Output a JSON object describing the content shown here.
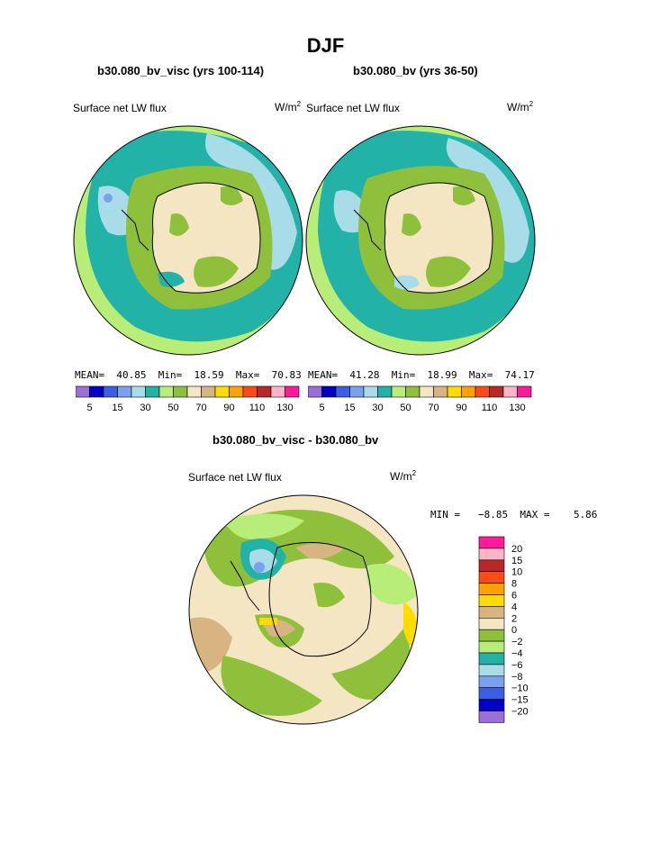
{
  "page": {
    "title": "DJF",
    "diff_title": "b30.080_bv_visc - b30.080_bv"
  },
  "panels": [
    {
      "case": "b30.080_bv_visc (yrs 100-114)",
      "field": "Surface net LW flux",
      "units_base": "W/m",
      "units_exp": "2",
      "stats": {
        "mean_label": "MEAN=",
        "mean": "40.85",
        "min_label": "Min=",
        "min": "18.59",
        "max_label": "Max=",
        "max": "70.83"
      }
    },
    {
      "case": "b30.080_bv (yrs 36-50)",
      "field": "Surface net LW flux",
      "units_base": "W/m",
      "units_exp": "2",
      "stats": {
        "mean_label": "MEAN=",
        "mean": "41.28",
        "min_label": "Min=",
        "min": "18.99",
        "max_label": "Max=",
        "max": "74.17"
      }
    }
  ],
  "colorbar_top": {
    "colors": [
      "#9a70d6",
      "#0000c8",
      "#3a5fe0",
      "#7aa0ee",
      "#a8dce8",
      "#22b2a8",
      "#b8ee78",
      "#8ec03c",
      "#f4e6c2",
      "#d8b482",
      "#ffdc00",
      "#ffa200",
      "#ff4a18",
      "#b82828",
      "#ffb4c8",
      "#ff1a9a"
    ],
    "tick_labels": [
      "5",
      "15",
      "30",
      "50",
      "70",
      "90",
      "110",
      "130"
    ]
  },
  "diff_panel": {
    "field": "Surface net LW flux",
    "units_base": "W/m",
    "units_exp": "2",
    "minmax": "MIN =   −8.85  MAX =    5.86"
  },
  "colorbar_diff": {
    "colors": [
      "#ff1a9a",
      "#ffb4c8",
      "#b82828",
      "#ff4a18",
      "#ffa200",
      "#ffdc00",
      "#d8b482",
      "#f4e6c2",
      "#8ec03c",
      "#b8ee78",
      "#22b2a8",
      "#a8dce8",
      "#7aa0ee",
      "#3a5fe0",
      "#0000c8",
      "#9a70d6"
    ],
    "tick_labels": [
      "20",
      "15",
      "10",
      "8",
      "6",
      "4",
      "2",
      "0",
      "−2",
      "−4",
      "−6",
      "−8",
      "−10",
      "−15",
      "−20"
    ]
  },
  "map_colors": {
    "ocean_outer": "#b8ee78",
    "ocean_mid": "#22b2a8",
    "ocean_cool": "#a8dce8",
    "ice_ring": "#8ec03c",
    "antarctic": "#f4e6c2",
    "land_green": "#8ec03c",
    "diff_base": "#f4e6c2",
    "diff_green": "#8ec03c",
    "diff_light": "#b8ee78",
    "diff_tan": "#d8b482",
    "diff_yellow": "#ffdc00",
    "diff_teal": "#22b2a8",
    "diff_cyan": "#a8dce8",
    "diff_blue": "#7aa0ee"
  }
}
